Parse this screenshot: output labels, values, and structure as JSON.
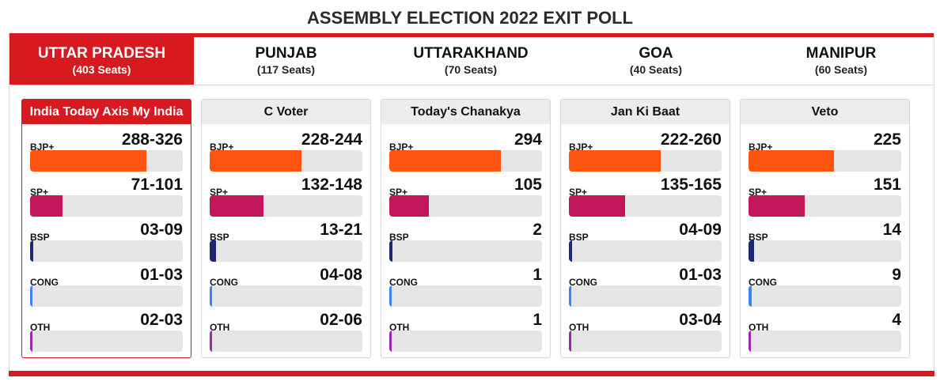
{
  "title": "ASSEMBLY ELECTION 2022 EXIT POLL",
  "colors": {
    "accent": "#d71920",
    "BJP+": "#ff5511",
    "SP+": "#c2185b",
    "BSP": "#1a2a6c",
    "CONG": "#3b82f6",
    "OTH": "#9c27b0"
  },
  "tabs": [
    {
      "name": "UTTAR PRADESH",
      "seats": "(403 Seats)",
      "active": true
    },
    {
      "name": "PUNJAB",
      "seats": "(117 Seats)",
      "active": false
    },
    {
      "name": "UTTARAKHAND",
      "seats": "(70 Seats)",
      "active": false
    },
    {
      "name": "GOA",
      "seats": "(40 Seats)",
      "active": false
    },
    {
      "name": "MANIPUR",
      "seats": "(60 Seats)",
      "active": false
    }
  ],
  "polls": [
    {
      "agency": "India Today Axis My India",
      "active": true,
      "rows": [
        {
          "party": "BJP+",
          "value": "288-326",
          "share": 0.76
        },
        {
          "party": "SP+",
          "value": "71-101",
          "share": 0.21
        },
        {
          "party": "BSP",
          "value": "03-09",
          "share": 0.02
        },
        {
          "party": "CONG",
          "value": "01-03",
          "share": 0.01
        },
        {
          "party": "OTH",
          "value": "02-03",
          "share": 0.01
        }
      ]
    },
    {
      "agency": "C Voter",
      "active": false,
      "rows": [
        {
          "party": "BJP+",
          "value": "228-244",
          "share": 0.6
        },
        {
          "party": "SP+",
          "value": "132-148",
          "share": 0.35
        },
        {
          "party": "BSP",
          "value": "13-21",
          "share": 0.04
        },
        {
          "party": "CONG",
          "value": "04-08",
          "share": 0.015
        },
        {
          "party": "OTH",
          "value": "02-06",
          "share": 0.01
        }
      ]
    },
    {
      "agency": "Today's Chanakya",
      "active": false,
      "rows": [
        {
          "party": "BJP+",
          "value": "294",
          "share": 0.73
        },
        {
          "party": "SP+",
          "value": "105",
          "share": 0.26
        },
        {
          "party": "BSP",
          "value": "2",
          "share": 0.02
        },
        {
          "party": "CONG",
          "value": "1",
          "share": 0.01
        },
        {
          "party": "OTH",
          "value": "1",
          "share": 0.01
        }
      ]
    },
    {
      "agency": "Jan Ki Baat",
      "active": false,
      "rows": [
        {
          "party": "BJP+",
          "value": "222-260",
          "share": 0.6
        },
        {
          "party": "SP+",
          "value": "135-165",
          "share": 0.37
        },
        {
          "party": "BSP",
          "value": "04-09",
          "share": 0.02
        },
        {
          "party": "CONG",
          "value": "01-03",
          "share": 0.01
        },
        {
          "party": "OTH",
          "value": "03-04",
          "share": 0.01
        }
      ]
    },
    {
      "agency": "Veto",
      "active": false,
      "rows": [
        {
          "party": "BJP+",
          "value": "225",
          "share": 0.56
        },
        {
          "party": "SP+",
          "value": "151",
          "share": 0.37
        },
        {
          "party": "BSP",
          "value": "14",
          "share": 0.035
        },
        {
          "party": "CONG",
          "value": "9",
          "share": 0.022
        },
        {
          "party": "OTH",
          "value": "4",
          "share": 0.01
        }
      ]
    }
  ]
}
